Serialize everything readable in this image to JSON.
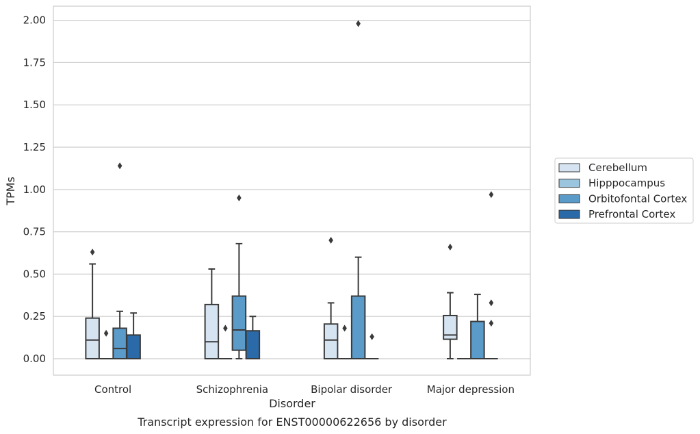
{
  "chart_data": {
    "type": "box",
    "title": "",
    "caption": "Transcript expression for ENST00000622656 by disorder",
    "xlabel": "Disorder",
    "ylabel": "TPMs",
    "ylim": [
      -0.1,
      2.08
    ],
    "yticks": [
      "0.00",
      "0.25",
      "0.50",
      "0.75",
      "1.00",
      "1.25",
      "1.50",
      "1.75",
      "2.00"
    ],
    "categories": [
      "Control",
      "Schizophrenia",
      "Bipolar disorder",
      "Major depression"
    ],
    "grid": true,
    "legend_position": "right",
    "series": [
      {
        "name": "Cerebellum",
        "color": "#d6e4f2",
        "boxes": [
          {
            "q1": 0.0,
            "median": 0.11,
            "q3": 0.24,
            "whisker_low": 0.0,
            "whisker_high": 0.56,
            "outliers": [
              0.63
            ]
          },
          {
            "q1": 0.0,
            "median": 0.1,
            "q3": 0.32,
            "whisker_low": 0.0,
            "whisker_high": 0.53,
            "outliers": []
          },
          {
            "q1": 0.0,
            "median": 0.11,
            "q3": 0.205,
            "whisker_low": 0.0,
            "whisker_high": 0.33,
            "outliers": [
              0.7
            ]
          },
          {
            "q1": 0.115,
            "median": 0.14,
            "q3": 0.255,
            "whisker_low": 0.0,
            "whisker_high": 0.39,
            "outliers": [
              0.66
            ]
          }
        ]
      },
      {
        "name": "Hipppocampus",
        "color": "#9bc4de",
        "boxes": [
          {
            "q1": 0.0,
            "median": 0.0,
            "q3": 0.0,
            "whisker_low": 0.0,
            "whisker_high": 0.0,
            "outliers": [
              0.15
            ]
          },
          {
            "q1": 0.0,
            "median": 0.0,
            "q3": 0.0,
            "whisker_low": 0.0,
            "whisker_high": 0.0,
            "outliers": [
              0.18
            ]
          },
          {
            "q1": 0.0,
            "median": 0.0,
            "q3": 0.0,
            "whisker_low": 0.0,
            "whisker_high": 0.0,
            "outliers": [
              0.18
            ]
          },
          {
            "q1": 0.0,
            "median": 0.0,
            "q3": 0.0,
            "whisker_low": 0.0,
            "whisker_high": 0.0,
            "outliers": []
          }
        ]
      },
      {
        "name": "Orbitofontal Cortex",
        "color": "#5a9bc9",
        "boxes": [
          {
            "q1": 0.0,
            "median": 0.06,
            "q3": 0.18,
            "whisker_low": 0.0,
            "whisker_high": 0.28,
            "outliers": [
              1.14
            ]
          },
          {
            "q1": 0.05,
            "median": 0.17,
            "q3": 0.37,
            "whisker_low": 0.0,
            "whisker_high": 0.68,
            "outliers": [
              0.95
            ]
          },
          {
            "q1": 0.0,
            "median": 0.0,
            "q3": 0.37,
            "whisker_low": 0.0,
            "whisker_high": 0.6,
            "outliers": [
              1.98
            ]
          },
          {
            "q1": 0.0,
            "median": 0.0,
            "q3": 0.22,
            "whisker_low": 0.0,
            "whisker_high": 0.38,
            "outliers": []
          }
        ]
      },
      {
        "name": "Prefrontal Cortex",
        "color": "#2b6aa8",
        "boxes": [
          {
            "q1": 0.0,
            "median": 0.0,
            "q3": 0.14,
            "whisker_low": 0.0,
            "whisker_high": 0.27,
            "outliers": []
          },
          {
            "q1": 0.0,
            "median": 0.0,
            "q3": 0.165,
            "whisker_low": 0.0,
            "whisker_high": 0.25,
            "outliers": []
          },
          {
            "q1": 0.0,
            "median": 0.0,
            "q3": 0.0,
            "whisker_low": 0.0,
            "whisker_high": 0.0,
            "outliers": [
              0.13
            ]
          },
          {
            "q1": 0.0,
            "median": 0.0,
            "q3": 0.0,
            "whisker_low": 0.0,
            "whisker_high": 0.0,
            "outliers": [
              0.21,
              0.33,
              0.97
            ]
          }
        ]
      }
    ]
  }
}
